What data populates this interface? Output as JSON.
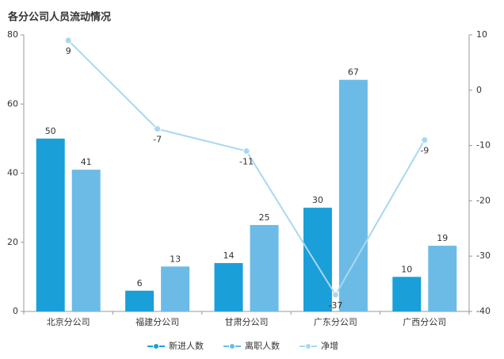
{
  "chart_data": {
    "type": "bar",
    "title": "各分公司人员流动情况",
    "categories": [
      "北京分公司",
      "福建分公司",
      "甘肃分公司",
      "广东分公司",
      "广西分公司"
    ],
    "series": [
      {
        "name": "新进人数",
        "color": "#1a9fd9",
        "values": [
          50,
          6,
          14,
          30,
          10
        ]
      },
      {
        "name": "离职人数",
        "color": "#6bbbe6",
        "values": [
          41,
          13,
          25,
          67,
          19
        ]
      },
      {
        "name": "净增",
        "color": "#a8d8f0",
        "type": "line",
        "axis": "y2",
        "values": [
          9,
          -7,
          -11,
          -37,
          -9
        ]
      }
    ],
    "ylim": [
      0,
      80
    ],
    "yticks": [
      0,
      20,
      40,
      60,
      80
    ],
    "y2lim": [
      -40,
      10
    ],
    "y2ticks": [
      -40,
      -30,
      -20,
      -10,
      0,
      10
    ],
    "legend": "bottom"
  }
}
